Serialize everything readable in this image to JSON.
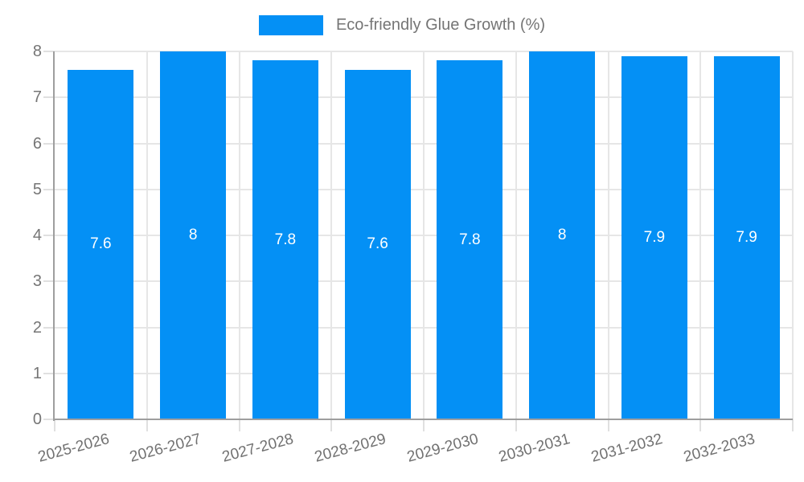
{
  "chart_data": {
    "type": "bar",
    "legend": {
      "label": "Eco-friendly Glue Growth (%)",
      "position": "top"
    },
    "categories": [
      "2025-2026",
      "2026-2027",
      "2027-2028",
      "2028-2029",
      "2029-2030",
      "2030-2031",
      "2031-2032",
      "2032-2033"
    ],
    "values": [
      7.6,
      8,
      7.8,
      7.6,
      7.8,
      8,
      7.9,
      7.9
    ],
    "value_labels": [
      "7.6",
      "8",
      "7.8",
      "7.6",
      "7.8",
      "8",
      "7.9",
      "7.9"
    ],
    "xlabel": "",
    "ylabel": "",
    "ylim": [
      0,
      8
    ],
    "yticks": [
      "0",
      "1",
      "2",
      "3",
      "4",
      "5",
      "6",
      "7",
      "8"
    ],
    "grid": true,
    "legend_position": "top-center",
    "xlabel_rotation_deg": -15,
    "colors": {
      "bar": "#0490f5",
      "value_label_text": "#ffffff",
      "axis_text": "#757575",
      "gridline": "#e6e6e6",
      "tick": "#e0e0e0",
      "axis_line": "#9e9e9e",
      "background": "#ffffff"
    }
  }
}
